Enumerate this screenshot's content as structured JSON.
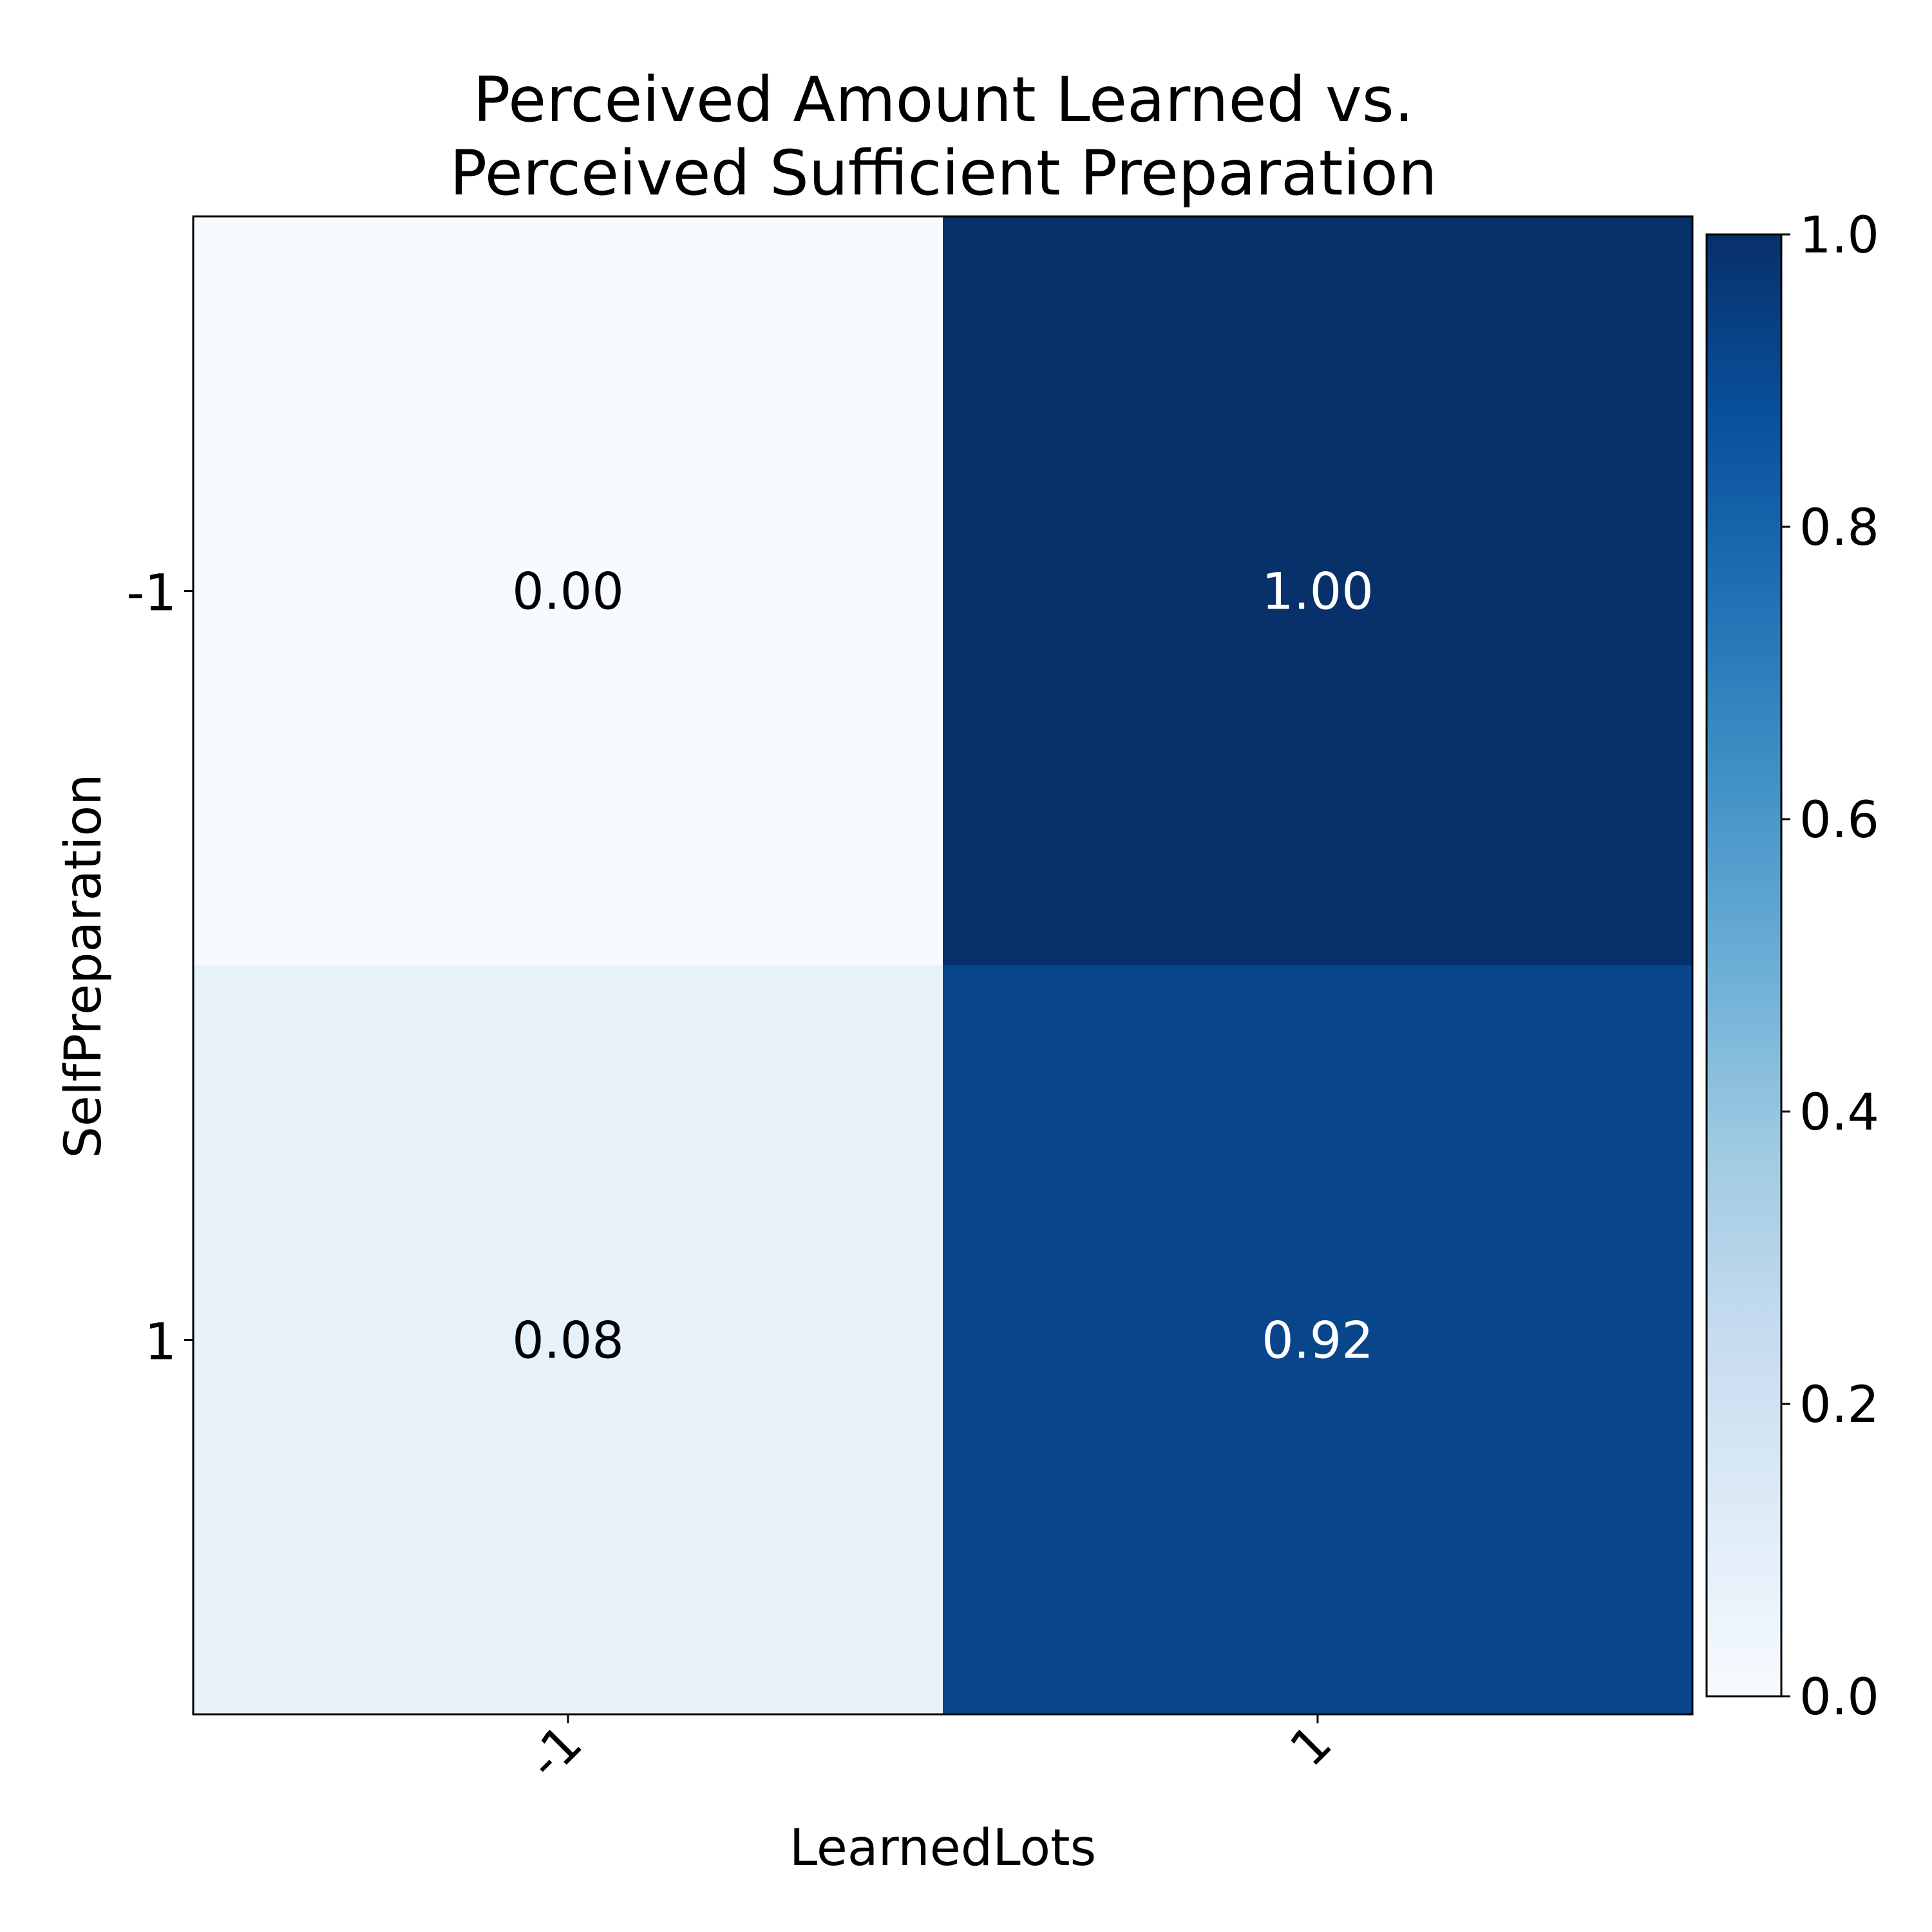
{
  "chart_data": {
    "type": "heatmap",
    "title_lines": [
      "Perceived Amount Learned vs.",
      "Perceived Sufficient Preparation"
    ],
    "xlabel": "LearnedLots",
    "ylabel": "SelfPreparation",
    "x_categories": [
      "-1",
      "1"
    ],
    "y_categories": [
      "-1",
      "1"
    ],
    "values": [
      [
        0.0,
        1.0
      ],
      [
        0.08,
        0.92
      ]
    ],
    "value_labels": [
      [
        "0.00",
        "1.00"
      ],
      [
        "0.08",
        "0.92"
      ]
    ],
    "colorbar": {
      "range": [
        0.0,
        1.0
      ],
      "ticks": [
        "0.0",
        "0.2",
        "0.4",
        "0.6",
        "0.8",
        "1.0"
      ],
      "colormap": "Blues"
    }
  }
}
